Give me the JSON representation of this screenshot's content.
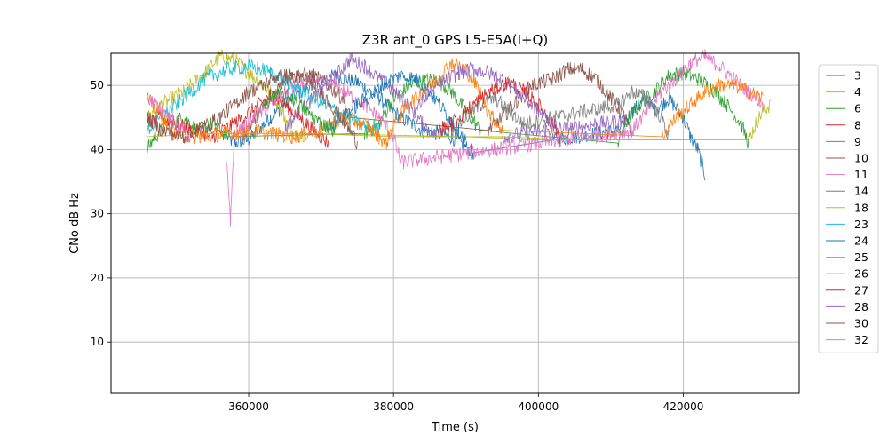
{
  "chart_data": {
    "type": "line",
    "title": "Z3R ant_0 GPS L5-E5A(I+Q)",
    "xlabel": "Time (s)",
    "ylabel": "CNo dB Hz",
    "xlim": [
      341000,
      436000
    ],
    "ylim": [
      2,
      55
    ],
    "xticks": [
      360000,
      380000,
      400000,
      420000
    ],
    "xtick_labels": [
      "360000",
      "380000",
      "400000",
      "420000"
    ],
    "yticks": [
      10,
      20,
      30,
      40,
      50
    ],
    "ytick_labels": [
      "10",
      "20",
      "30",
      "40",
      "50"
    ],
    "grid": true,
    "legend_position": "right",
    "series": [
      {
        "name": "3",
        "color": "#1f77b4",
        "points": [
          [
            357000,
            42
          ],
          [
            358000,
            41
          ],
          [
            360000,
            41.5
          ],
          [
            363000,
            45
          ],
          [
            366000,
            48
          ],
          [
            369000,
            50.5
          ],
          [
            372000,
            51.5
          ],
          [
            375000,
            50.5
          ],
          [
            378000,
            48
          ],
          [
            381000,
            45
          ],
          [
            384000,
            43
          ],
          [
            388000,
            42
          ],
          [
            391000,
            39.5
          ],
          [
            402000,
            41.5
          ],
          [
            408000,
            42.5
          ],
          [
            411000,
            43
          ],
          [
            413000,
            46
          ],
          [
            415000,
            48
          ],
          [
            416000,
            46
          ],
          [
            418000,
            48
          ],
          [
            420000,
            45
          ],
          [
            421000,
            42
          ],
          [
            422000,
            40
          ],
          [
            423000,
            36
          ]
        ]
      },
      {
        "name": "4",
        "color": "#bcbd22",
        "points": [
          [
            346000,
            45
          ],
          [
            348000,
            47
          ],
          [
            351000,
            49
          ],
          [
            354000,
            52
          ],
          [
            356000,
            54.5
          ],
          [
            358000,
            54
          ],
          [
            360000,
            52
          ],
          [
            362000,
            50
          ],
          [
            364000,
            47.5
          ],
          [
            365000,
            45
          ],
          [
            366000,
            42
          ],
          [
            368000,
            42.5
          ],
          [
            390000,
            42
          ],
          [
            400000,
            41.5
          ],
          [
            410000,
            41.5
          ],
          [
            420000,
            41.5
          ],
          [
            429000,
            41.5
          ],
          [
            430000,
            44
          ],
          [
            431000,
            46
          ],
          [
            432000,
            47
          ]
        ]
      },
      {
        "name": "6",
        "color": "#2ca02c",
        "points": [
          [
            346000,
            40
          ],
          [
            347000,
            42
          ],
          [
            349000,
            44
          ],
          [
            351000,
            45
          ],
          [
            353000,
            43
          ],
          [
            355000,
            44
          ],
          [
            357000,
            42
          ],
          [
            376000,
            42.5
          ],
          [
            378000,
            44
          ],
          [
            380000,
            48
          ],
          [
            383000,
            50.5
          ],
          [
            386000,
            51
          ],
          [
            388000,
            49
          ],
          [
            390000,
            46
          ],
          [
            392000,
            43
          ],
          [
            411000,
            41
          ],
          [
            412000,
            44
          ],
          [
            414000,
            47
          ],
          [
            416000,
            49
          ],
          [
            418000,
            51.5
          ],
          [
            420000,
            52
          ],
          [
            422000,
            51
          ],
          [
            424000,
            49.5
          ],
          [
            426000,
            47
          ],
          [
            428000,
            44
          ],
          [
            429000,
            41
          ]
        ]
      },
      {
        "name": "8",
        "color": "#d62728",
        "points": [
          [
            346000,
            44
          ],
          [
            348000,
            45
          ],
          [
            352000,
            43
          ],
          [
            355000,
            42
          ],
          [
            358000,
            44
          ],
          [
            361000,
            46.5
          ],
          [
            363000,
            48.5
          ],
          [
            364000,
            48
          ],
          [
            366000,
            46
          ],
          [
            368000,
            44
          ],
          [
            370000,
            42
          ],
          [
            371000,
            41
          ]
        ]
      },
      {
        "name": "9",
        "color": "#9467bd",
        "points": [
          [
            365000,
            43
          ],
          [
            367000,
            46
          ],
          [
            370000,
            49
          ],
          [
            372000,
            51.5
          ],
          [
            374000,
            54
          ],
          [
            376000,
            53
          ],
          [
            378000,
            51
          ],
          [
            380000,
            49
          ],
          [
            382000,
            47
          ],
          [
            384000,
            44
          ],
          [
            386000,
            42
          ],
          [
            395000,
            42
          ],
          [
            401000,
            43
          ],
          [
            405000,
            43.5
          ],
          [
            408000,
            44
          ],
          [
            412000,
            44.5
          ]
        ]
      },
      {
        "name": "10",
        "color": "#8c564b",
        "points": [
          [
            359000,
            42
          ],
          [
            361000,
            45
          ],
          [
            363000,
            48
          ],
          [
            365000,
            51
          ],
          [
            367000,
            51.5
          ],
          [
            369000,
            51.5
          ],
          [
            371000,
            50
          ],
          [
            373000,
            48
          ],
          [
            374000,
            45
          ],
          [
            393000,
            43
          ],
          [
            395000,
            45
          ],
          [
            397000,
            47.5
          ],
          [
            399000,
            50
          ],
          [
            402000,
            51
          ],
          [
            404000,
            52.5
          ],
          [
            406000,
            52.5
          ],
          [
            408000,
            51
          ],
          [
            410000,
            48
          ],
          [
            412000,
            45
          ],
          [
            413000,
            41.5
          ]
        ]
      },
      {
        "name": "11",
        "color": "#e377c2",
        "points": [
          [
            357000,
            38
          ],
          [
            357500,
            29
          ],
          [
            358000,
            42
          ],
          [
            360000,
            44
          ],
          [
            362000,
            46
          ],
          [
            364000,
            48
          ],
          [
            366000,
            49.5
          ],
          [
            368000,
            50.5
          ],
          [
            370000,
            50.5
          ],
          [
            372000,
            50
          ],
          [
            374000,
            48.5
          ],
          [
            376000,
            47
          ],
          [
            378000,
            45
          ],
          [
            380000,
            42
          ],
          [
            381000,
            38
          ],
          [
            413000,
            43
          ],
          [
            415000,
            46
          ],
          [
            417000,
            49
          ],
          [
            419000,
            51
          ],
          [
            421000,
            53.5
          ],
          [
            423000,
            54.5
          ],
          [
            425000,
            53
          ],
          [
            427000,
            51
          ],
          [
            429000,
            49
          ],
          [
            431000,
            47
          ]
        ]
      },
      {
        "name": "14",
        "color": "#7f7f7f",
        "points": [
          [
            388000,
            43
          ],
          [
            390000,
            45
          ],
          [
            392000,
            47
          ],
          [
            394000,
            48
          ],
          [
            396000,
            46
          ],
          [
            398000,
            44
          ],
          [
            411000,
            47
          ],
          [
            413000,
            49
          ],
          [
            415000,
            48
          ],
          [
            417000,
            45
          ],
          [
            418000,
            42
          ]
        ]
      },
      {
        "name": "18",
        "color": "#bcbd22",
        "points": [
          [
            346000,
            42
          ],
          [
            355000,
            42.5
          ],
          [
            368000,
            42.5
          ],
          [
            380000,
            42
          ],
          [
            395000,
            42
          ],
          [
            405000,
            41.5
          ],
          [
            420000,
            41.5
          ]
        ]
      },
      {
        "name": "23",
        "color": "#17becf",
        "points": [
          [
            346000,
            43
          ],
          [
            348000,
            45
          ],
          [
            351000,
            48
          ],
          [
            354000,
            51
          ],
          [
            357000,
            52.5
          ],
          [
            360000,
            53
          ],
          [
            363000,
            52
          ],
          [
            366000,
            50
          ],
          [
            369000,
            48
          ],
          [
            372000,
            46
          ],
          [
            375000,
            44
          ],
          [
            378000,
            43
          ]
        ]
      },
      {
        "name": "24",
        "color": "#1f77b4",
        "points": [
          [
            371000,
            44
          ],
          [
            373000,
            45
          ],
          [
            375000,
            47
          ],
          [
            377000,
            48.5
          ],
          [
            379000,
            50.5
          ],
          [
            381000,
            51.5
          ],
          [
            383000,
            51
          ],
          [
            385000,
            49
          ],
          [
            387000,
            46
          ],
          [
            389000,
            43
          ],
          [
            390000,
            41.5
          ]
        ]
      },
      {
        "name": "25",
        "color": "#ff7f0e",
        "points": [
          [
            346000,
            48
          ],
          [
            348000,
            45
          ],
          [
            350000,
            42
          ],
          [
            354000,
            42
          ],
          [
            360000,
            43
          ],
          [
            366000,
            42
          ],
          [
            370000,
            43
          ],
          [
            373000,
            45
          ],
          [
            376000,
            44
          ],
          [
            378000,
            42
          ],
          [
            379000,
            41
          ],
          [
            380000,
            44
          ],
          [
            382000,
            47
          ],
          [
            384000,
            49
          ],
          [
            386000,
            51
          ],
          [
            388000,
            53.5
          ],
          [
            390000,
            52.5
          ],
          [
            392000,
            49
          ],
          [
            393000,
            46
          ],
          [
            395000,
            43
          ],
          [
            417000,
            42
          ],
          [
            419000,
            45
          ],
          [
            421000,
            47
          ],
          [
            423000,
            49
          ],
          [
            425000,
            50
          ],
          [
            427000,
            50
          ],
          [
            429000,
            49
          ],
          [
            431000,
            48
          ]
        ]
      },
      {
        "name": "26",
        "color": "#2ca02c",
        "points": [
          [
            362000,
            47
          ],
          [
            364000,
            48.5
          ],
          [
            366000,
            48
          ],
          [
            368000,
            46
          ],
          [
            370000,
            44
          ],
          [
            372000,
            43
          ]
        ]
      },
      {
        "name": "27",
        "color": "#d62728",
        "points": [
          [
            386000,
            43
          ],
          [
            388000,
            44
          ],
          [
            390000,
            46
          ],
          [
            392000,
            48
          ],
          [
            394000,
            49.5
          ],
          [
            396000,
            50.5
          ],
          [
            398000,
            49
          ],
          [
            400000,
            47
          ],
          [
            402000,
            44
          ],
          [
            403000,
            42
          ]
        ]
      },
      {
        "name": "28",
        "color": "#9467bd",
        "points": [
          [
            383000,
            46
          ],
          [
            385000,
            49
          ],
          [
            387000,
            50.5
          ],
          [
            389000,
            52
          ],
          [
            391000,
            52.5
          ],
          [
            393000,
            52
          ],
          [
            395000,
            51
          ],
          [
            397000,
            49
          ],
          [
            399000,
            47
          ],
          [
            401000,
            45
          ],
          [
            403000,
            43
          ]
        ]
      },
      {
        "name": "30",
        "color": "#8c564b",
        "points": [
          [
            346000,
            45
          ],
          [
            348000,
            43
          ],
          [
            351000,
            42
          ],
          [
            353000,
            43
          ],
          [
            356000,
            45
          ],
          [
            358000,
            47
          ],
          [
            360000,
            49
          ],
          [
            362000,
            50
          ],
          [
            364000,
            51.5
          ],
          [
            366000,
            51.5
          ],
          [
            368000,
            51
          ],
          [
            370000,
            49
          ],
          [
            372000,
            46
          ],
          [
            374000,
            43
          ],
          [
            375000,
            41
          ]
        ]
      },
      {
        "name": "32",
        "color": "#e377c2",
        "points": [
          [
            346000,
            48.5
          ],
          [
            347000,
            47
          ],
          [
            349000,
            45
          ],
          [
            351000,
            43
          ],
          [
            352000,
            42
          ]
        ]
      }
    ]
  }
}
